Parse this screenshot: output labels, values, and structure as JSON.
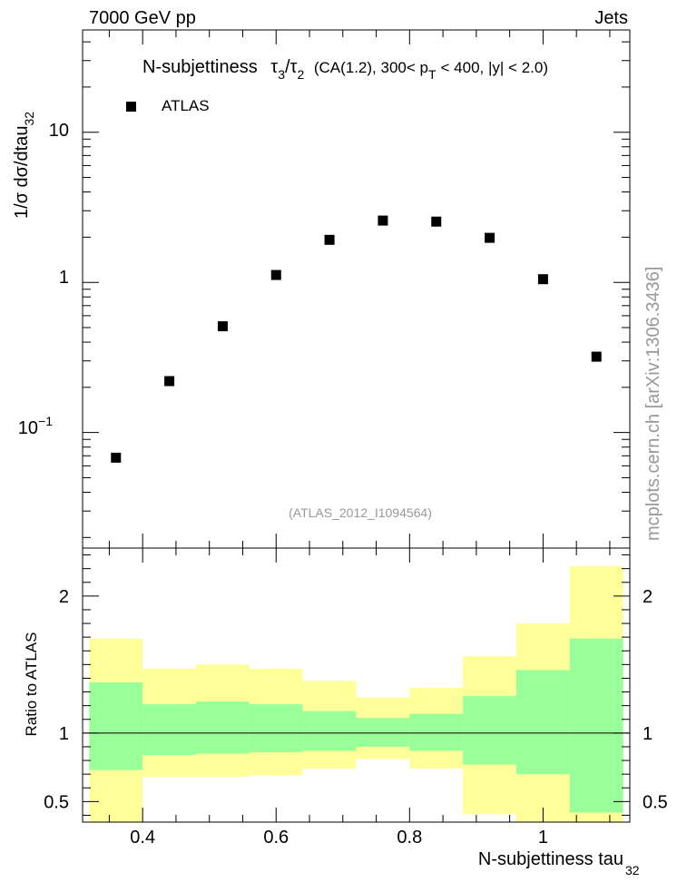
{
  "header": {
    "left": "7000 GeV pp",
    "right": "Jets"
  },
  "side_note": "mcplots.cern.ch [arXiv:1306.3436]",
  "colors": {
    "band_inner": "#99ff99",
    "band_outer": "#ffff99",
    "marker": "#000000",
    "watermark": "#999999"
  },
  "chart_data": [
    {
      "type": "scatter",
      "title": {
        "prefix": "N-subjettiness",
        "t3": "τ",
        "t3sub": "3",
        "slash": "/",
        "t2": "τ",
        "t2sub": "2",
        "mid": "(CA(1.2), 300< p",
        "ptsub": "T",
        "suffix": "< 400, |y| < 2.0)"
      },
      "ylabel": {
        "main": "1/σ dσ/dtau",
        "sub": "32"
      },
      "yscale": "log",
      "ylim": [
        0.017,
        48
      ],
      "xlim": [
        0.31,
        1.13
      ],
      "yticks": [
        {
          "value": 10,
          "label": "10"
        },
        {
          "value": 1,
          "label": "1"
        },
        {
          "value": 0.1,
          "base": "10",
          "exp": "−1"
        }
      ],
      "legend": {
        "position": "top-left",
        "entries": [
          {
            "name": "ATLAS",
            "marker": "square"
          }
        ]
      },
      "annotation": "(ATLAS_2012_I1094564)",
      "series": [
        {
          "name": "ATLAS",
          "x": [
            0.36,
            0.44,
            0.52,
            0.6,
            0.68,
            0.76,
            0.84,
            0.92,
            1.0,
            1.08
          ],
          "y": [
            0.068,
            0.22,
            0.51,
            1.12,
            1.92,
            2.58,
            2.54,
            1.98,
            1.05,
            0.32
          ]
        }
      ]
    },
    {
      "type": "area",
      "ylabel": "Ratio to ATLAS",
      "xlabel": {
        "main": "N-subjettiness tau",
        "sub": "32"
      },
      "xlim": [
        0.31,
        1.13
      ],
      "ylim": [
        0.35,
        2.35
      ],
      "xticks": [
        {
          "value": 0.4,
          "label": "0.4"
        },
        {
          "value": 0.6,
          "label": "0.6"
        },
        {
          "value": 0.8,
          "label": "0.8"
        },
        {
          "value": 1.0,
          "label": "1"
        }
      ],
      "yticks": [
        {
          "value": 0.5,
          "label": "0.5"
        },
        {
          "value": 1,
          "label": "1"
        },
        {
          "value": 2,
          "label": "2"
        }
      ],
      "reference_line": 1,
      "bins": [
        {
          "lo": 0.32,
          "hi": 0.4,
          "inner": [
            0.73,
            1.37
          ],
          "outer": [
            0.35,
            1.69
          ]
        },
        {
          "lo": 0.4,
          "hi": 0.48,
          "inner": [
            0.84,
            1.21
          ],
          "outer": [
            0.68,
            1.47
          ]
        },
        {
          "lo": 0.48,
          "hi": 0.56,
          "inner": [
            0.85,
            1.23
          ],
          "outer": [
            0.68,
            1.5
          ]
        },
        {
          "lo": 0.56,
          "hi": 0.64,
          "inner": [
            0.86,
            1.21
          ],
          "outer": [
            0.69,
            1.47
          ]
        },
        {
          "lo": 0.64,
          "hi": 0.72,
          "inner": [
            0.87,
            1.16
          ],
          "outer": [
            0.74,
            1.38
          ]
        },
        {
          "lo": 0.72,
          "hi": 0.8,
          "inner": [
            0.9,
            1.11
          ],
          "outer": [
            0.81,
            1.26
          ]
        },
        {
          "lo": 0.8,
          "hi": 0.88,
          "inner": [
            0.87,
            1.14
          ],
          "outer": [
            0.74,
            1.33
          ]
        },
        {
          "lo": 0.88,
          "hi": 0.96,
          "inner": [
            0.77,
            1.27
          ],
          "outer": [
            0.41,
            1.56
          ]
        },
        {
          "lo": 0.96,
          "hi": 1.04,
          "inner": [
            0.7,
            1.46
          ],
          "outer": [
            0.35,
            1.8
          ]
        },
        {
          "lo": 1.04,
          "hi": 1.12,
          "inner": [
            0.42,
            1.69
          ],
          "outer": [
            0.35,
            2.22
          ]
        }
      ]
    }
  ]
}
